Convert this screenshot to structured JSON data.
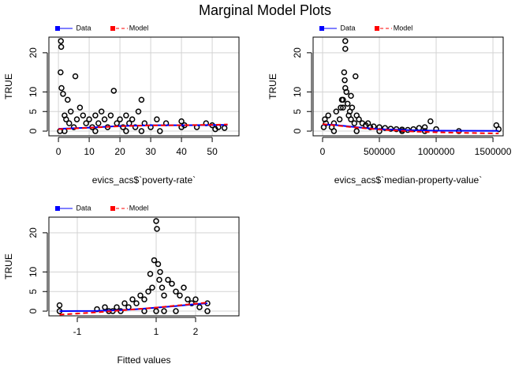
{
  "title": "Marginal Model Plots",
  "chart_data": [
    {
      "type": "scatter",
      "x_label": "evics_acs$`poverty-rate`",
      "y_label": "TRUE",
      "xlim": [
        -3.1,
        58.7
      ],
      "ylim": [
        -1.2,
        24
      ],
      "xticks": [
        0,
        10,
        20,
        30,
        40,
        50
      ],
      "yticks": [
        0,
        5,
        10,
        20
      ],
      "grid": true,
      "series": [
        {
          "color": "#000000",
          "x": [
            0.5,
            0.7,
            0.8,
            0.9,
            1,
            1.5,
            2,
            2.5,
            3,
            3.5,
            4,
            5,
            5.5,
            6,
            7,
            8,
            9,
            10,
            11,
            12,
            13,
            14,
            15,
            16,
            17,
            18,
            19,
            20,
            21,
            22,
            23,
            24,
            25,
            26,
            27,
            28,
            30,
            32,
            33,
            35,
            40,
            40,
            41,
            45,
            48,
            50,
            51,
            52,
            54,
            2,
            12,
            22,
            27
          ],
          "values": [
            0,
            15,
            23,
            21.5,
            11,
            9.5,
            4,
            3,
            8,
            2,
            5,
            1,
            14,
            3,
            6,
            4,
            2,
            3,
            1,
            4,
            2,
            5,
            3,
            1,
            4,
            10.3,
            2,
            3,
            1,
            4,
            2,
            3,
            1,
            5,
            8,
            2,
            1,
            3,
            0,
            2,
            2.5,
            1,
            1.5,
            1,
            2,
            1.5,
            0.5,
            1,
            0.8,
            0,
            0,
            0,
            0
          ]
        },
        {
          "name": "Data",
          "color": "#0000ff",
          "style": "solid",
          "x": [
            0,
            10,
            20,
            30,
            40,
            50,
            55
          ],
          "values": [
            0.6,
            0.9,
            1.3,
            1.5,
            1.5,
            1.55,
            1.6
          ]
        },
        {
          "name": "Model",
          "color": "#ff0000",
          "style": "dashed",
          "x": [
            0,
            10,
            20,
            30,
            40,
            50,
            55
          ],
          "values": [
            0.5,
            0.85,
            1.25,
            1.45,
            1.5,
            1.6,
            1.7
          ]
        }
      ]
    },
    {
      "type": "scatter",
      "x_label": "evics_acs$`median-property-value`",
      "y_label": "TRUE",
      "xlim": [
        -83333,
        1590000
      ],
      "ylim": [
        -1.2,
        24
      ],
      "xticks": [
        0,
        500000,
        1000000,
        1500000
      ],
      "yticks": [
        0,
        5,
        10,
        20
      ],
      "grid": true,
      "series": [
        {
          "color": "#000000",
          "x": [
            10000,
            20000,
            30000,
            50000,
            80000,
            100000,
            120000,
            150000,
            170000,
            180000,
            190000,
            200000,
            200000,
            210000,
            220000,
            230000,
            240000,
            250000,
            260000,
            280000,
            300000,
            320000,
            350000,
            380000,
            400000,
            420000,
            450000,
            500000,
            550000,
            600000,
            650000,
            700000,
            750000,
            800000,
            850000,
            900000,
            950000,
            1000000,
            1530000,
            1550000,
            200000,
            195000,
            250000,
            290000,
            180000,
            160000,
            100000,
            300000,
            500000,
            700000,
            900000,
            1200000
          ],
          "values": [
            1,
            3,
            2,
            4,
            1,
            2,
            5,
            3,
            8,
            6,
            15,
            23,
            21,
            10,
            7,
            4,
            5,
            3,
            6,
            2,
            4,
            3,
            2,
            1.5,
            2,
            1,
            1.2,
            1,
            0.8,
            0.6,
            0.5,
            0.4,
            0.3,
            0.5,
            0.8,
            1,
            2.5,
            0.5,
            1.5,
            0.5,
            11,
            13,
            9,
            14,
            8,
            6,
            0,
            0,
            0,
            0,
            0,
            0
          ]
        },
        {
          "name": "Data",
          "color": "#0000ff",
          "style": "solid",
          "x": [
            0,
            100000,
            200000,
            300000,
            500000,
            800000,
            1000000,
            1550000
          ],
          "values": [
            1.7,
            1.6,
            1.3,
            1.0,
            0.5,
            0.2,
            0.1,
            0.05
          ]
        },
        {
          "name": "Model",
          "color": "#ff0000",
          "style": "dashed",
          "x": [
            0,
            100000,
            200000,
            300000,
            500000,
            800000,
            1000000,
            1550000
          ],
          "values": [
            1.8,
            1.5,
            1.2,
            0.9,
            0.4,
            -0.1,
            -0.3,
            -0.6
          ]
        }
      ]
    },
    {
      "type": "scatter",
      "x_label": "Fitted values",
      "y_label": "TRUE",
      "xlim": [
        -1.72,
        3.1
      ],
      "ylim": [
        -1.2,
        24
      ],
      "xticks": [
        -1,
        1,
        2
      ],
      "yticks": [
        0,
        5,
        10,
        20
      ],
      "grid": true,
      "series": [
        {
          "color": "#000000",
          "x": [
            -1.45,
            -1.45,
            -0.5,
            -0.3,
            -0.1,
            0,
            0.2,
            0.3,
            0.4,
            0.5,
            0.6,
            0.7,
            0.8,
            0.85,
            0.9,
            0.95,
            1,
            1.02,
            1.05,
            1.08,
            1.1,
            1.15,
            1.2,
            1.3,
            1.4,
            1.5,
            1.6,
            1.7,
            1.8,
            1.9,
            2,
            2.1,
            2.3,
            2.3,
            0.7,
            1.0,
            1.2,
            1.5,
            0.1,
            -0.2
          ],
          "values": [
            0,
            1.5,
            0.5,
            1,
            0,
            1,
            2,
            1,
            3,
            2,
            4,
            3,
            5,
            9.5,
            6,
            13,
            23,
            21,
            12,
            8,
            10,
            6,
            4,
            8,
            7,
            5,
            4,
            6,
            3,
            2,
            3,
            1,
            2,
            0,
            0,
            0,
            0,
            0,
            0,
            0
          ]
        },
        {
          "name": "Data",
          "color": "#0000ff",
          "style": "solid",
          "x": [
            -1.45,
            -0.5,
            0,
            0.5,
            1,
            1.5,
            2,
            2.3
          ],
          "values": [
            0,
            0.05,
            0.2,
            0.5,
            0.9,
            1.3,
            1.8,
            2.0
          ]
        },
        {
          "name": "Model",
          "color": "#ff0000",
          "style": "dashed",
          "x": [
            -1.45,
            -0.5,
            0,
            0.5,
            1,
            1.5,
            2,
            2.3
          ],
          "values": [
            -0.9,
            -0.3,
            0.1,
            0.5,
            0.9,
            1.4,
            1.9,
            2.2
          ]
        }
      ]
    }
  ]
}
